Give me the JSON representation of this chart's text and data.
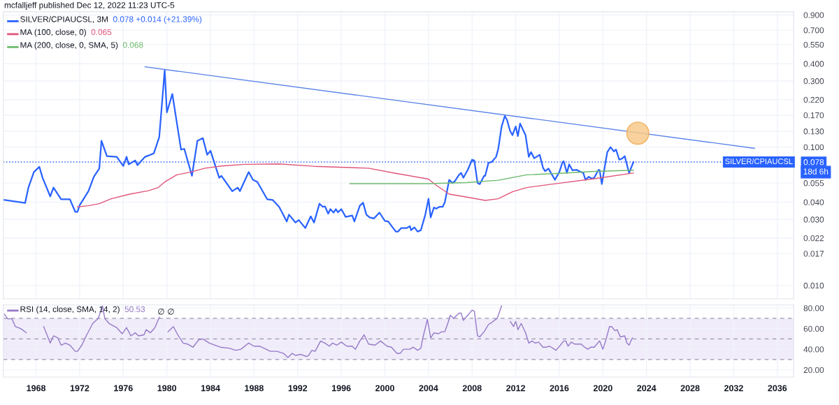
{
  "chart_data": [
    {
      "type": "line",
      "title": "mcfalljeff published Dec 12, 2022 11:23 UTC-5",
      "log": "y",
      "grid": true,
      "legend": "top left",
      "tick_labels": "y",
      "xlim": [
        1965.0,
        2037.5
      ],
      "xticks": [
        1968,
        1972,
        1976,
        1980,
        1984,
        1988,
        1992,
        1996,
        2000,
        2004,
        2008,
        2012,
        2016,
        2020,
        2024,
        2028,
        2032,
        2036
      ],
      "ylim": [
        0.008,
        0.95
      ],
      "yticks": [
        {
          "value": 0.01,
          "label": "0.010"
        },
        {
          "value": 0.017,
          "label": "0.017"
        },
        {
          "value": 0.022,
          "label": "0.022"
        },
        {
          "value": 0.03,
          "label": "0.030"
        },
        {
          "value": 0.04,
          "label": "0.040"
        },
        {
          "value": 0.055,
          "label": "0.055"
        },
        {
          "value": 0.078,
          "label": "0.078"
        },
        {
          "value": 0.1,
          "label": "0.100"
        },
        {
          "value": 0.13,
          "label": "0.130"
        },
        {
          "value": 0.17,
          "label": "0.170"
        },
        {
          "value": 0.22,
          "label": "0.220"
        },
        {
          "value": 0.3,
          "label": "0.300"
        },
        {
          "value": 0.4,
          "label": "0.400"
        },
        {
          "value": 0.55,
          "label": "0.550"
        },
        {
          "value": 0.7,
          "label": "0.700"
        },
        {
          "value": 0.9,
          "label": "0.900"
        }
      ],
      "ref_lines": [
        {
          "axis": "y",
          "value": 0.078,
          "label": "SILVER/CPIAUCSL",
          "color": "#2962ff",
          "line_style": "dotted"
        }
      ],
      "annotations": [
        "0.078 +0.014 (+21.39%)",
        "0.065",
        "0.068",
        "18d 6h"
      ],
      "series": [
        {
          "name": "SILVER/CPIAUCSL, 3M",
          "color": "#2962ff",
          "x": [
            1965.1,
            1967.0,
            1967.3,
            1967.8,
            1968.3,
            1968.6,
            1969.3,
            1969.6,
            1970.3,
            1971.1,
            1971.6,
            1971.8,
            1972.0,
            1972.8,
            1973.3,
            1973.8,
            1974.0,
            1974.5,
            1975.4,
            1976.0,
            1976.3,
            1976.5,
            1977.1,
            1977.3,
            1978.0,
            1978.8,
            1979.3,
            1979.8,
            1980.0,
            1980.5,
            1981.3,
            1981.6,
            1982.3,
            1982.8,
            1983.3,
            1983.7,
            1984.0,
            1984.8,
            1985.0,
            1986.0,
            1986.5,
            1986.7,
            1987.5,
            1987.9,
            1988.3,
            1989.2,
            1989.7,
            1990.3,
            1991.0,
            1991.2,
            1991.8,
            1992.1,
            1992.7,
            1993.2,
            1993.5,
            1994.0,
            1994.3,
            1994.5,
            1994.8,
            1995.0,
            1995.3,
            1995.5,
            1995.7,
            1996.0,
            1996.4,
            1997.0,
            1997.2,
            1997.7,
            1998.0,
            1998.3,
            1998.6,
            1999.0,
            1999.5,
            2000.0,
            2000.3,
            2001.0,
            2001.2,
            2001.5,
            2002.0,
            2002.3,
            2002.4,
            2002.7,
            2003.0,
            2003.3,
            2003.7,
            2004.0,
            2004.2,
            2004.5,
            2004.7,
            2005.0,
            2005.3,
            2005.5,
            2005.9,
            2006.2,
            2006.4,
            2006.8,
            2007.0,
            2007.2,
            2007.6,
            2008.0,
            2008.2,
            2008.5,
            2008.7,
            2009.1,
            2009.2,
            2009.5,
            2009.8,
            2010.2,
            2010.4,
            2010.7,
            2011.0,
            2011.2,
            2011.5,
            2011.7,
            2012.0,
            2012.2,
            2012.4,
            2012.9,
            2013.2,
            2013.4,
            2013.7,
            2014.2,
            2014.5,
            2014.7,
            2015.0,
            2015.6,
            2016.0,
            2016.3,
            2016.4,
            2016.7,
            2016.9,
            2017.2,
            2017.6,
            2017.8,
            2018.2,
            2018.4,
            2018.7,
            2019.0,
            2019.2,
            2019.6,
            2019.7,
            2019.9,
            2020.4,
            2020.7,
            2021.0,
            2021.2,
            2021.5,
            2021.8,
            2022.0,
            2022.4,
            2022.8
          ],
          "values": [
            0.0415,
            0.0395,
            0.051,
            0.066,
            0.072,
            0.06,
            0.044,
            0.051,
            0.042,
            0.042,
            0.034,
            0.034,
            0.038,
            0.048,
            0.061,
            0.07,
            0.111,
            0.086,
            0.085,
            0.073,
            0.085,
            0.075,
            0.08,
            0.074,
            0.085,
            0.09,
            0.118,
            0.36,
            0.178,
            0.242,
            0.096,
            0.097,
            0.062,
            0.111,
            0.116,
            0.088,
            0.094,
            0.06,
            0.062,
            0.048,
            0.051,
            0.048,
            0.066,
            0.058,
            0.056,
            0.042,
            0.0415,
            0.037,
            0.029,
            0.0325,
            0.0285,
            0.0297,
            0.026,
            0.0316,
            0.0285,
            0.039,
            0.037,
            0.0373,
            0.033,
            0.0356,
            0.0336,
            0.0356,
            0.0338,
            0.0356,
            0.0313,
            0.032,
            0.029,
            0.0377,
            0.0396,
            0.0325,
            0.031,
            0.0305,
            0.0336,
            0.0293,
            0.029,
            0.0245,
            0.0245,
            0.026,
            0.026,
            0.0268,
            0.0251,
            0.0263,
            0.0245,
            0.0251,
            0.0323,
            0.0423,
            0.031,
            0.0366,
            0.0359,
            0.037,
            0.037,
            0.04,
            0.058,
            0.055,
            0.0565,
            0.063,
            0.065,
            0.06,
            0.0685,
            0.081,
            0.08,
            0.055,
            0.054,
            0.062,
            0.062,
            0.077,
            0.078,
            0.085,
            0.097,
            0.14,
            0.168,
            0.157,
            0.13,
            0.122,
            0.141,
            0.12,
            0.148,
            0.122,
            0.085,
            0.092,
            0.083,
            0.088,
            0.071,
            0.067,
            0.07,
            0.058,
            0.066,
            0.078,
            0.079,
            0.065,
            0.075,
            0.068,
            0.0685,
            0.067,
            0.065,
            0.058,
            0.061,
            0.059,
            0.06,
            0.0685,
            0.068,
            0.054,
            0.092,
            0.1,
            0.093,
            0.096,
            0.081,
            0.083,
            0.086,
            0.065,
            0.078
          ]
        },
        {
          "name": "MA (100, close, 0)",
          "color": "#e0557a",
          "x": [
            1971.8,
            1972.8,
            1973.8,
            1974.9,
            1976.6,
            1978.3,
            1979.2,
            1979.8,
            1980.9,
            1982.2,
            1983.5,
            1985.0,
            1987.1,
            1990.3,
            1993.5,
            1998.5,
            2001.0,
            2004.0,
            2004.7,
            2005.9,
            2007.5,
            2009.2,
            2010.4,
            2011.7,
            2013.0,
            2016.0,
            2019.2,
            2022.8
          ],
          "values": [
            0.037,
            0.0377,
            0.039,
            0.0423,
            0.0457,
            0.0484,
            0.051,
            0.0559,
            0.063,
            0.066,
            0.0704,
            0.073,
            0.075,
            0.0755,
            0.0726,
            0.0704,
            0.0646,
            0.0587,
            0.053,
            0.0457,
            0.0435,
            0.0412,
            0.0423,
            0.0475,
            0.051,
            0.0548,
            0.059,
            0.065
          ]
        },
        {
          "name": "MA (200, close, 0, SMA, 5)",
          "color": "#6dbb6d",
          "x": [
            1996.8,
            2004.0,
            2007.5,
            2010.4,
            2013.0,
            2016.0,
            2019.2,
            2022.8
          ],
          "values": [
            0.0544,
            0.0544,
            0.0554,
            0.0576,
            0.063,
            0.0646,
            0.0667,
            0.068
          ]
        },
        {
          "color": "#5b84e8",
          "x": [
            1978.0,
            2033.9
          ],
          "values": [
            0.38,
            0.098
          ]
        },
        {
          "type": "scatter",
          "color": "#f7c98b",
          "x": [
            2023.2
          ],
          "values": [
            0.126
          ]
        }
      ]
    },
    {
      "type": "line",
      "grid": true,
      "legend": "top left",
      "xlim": [
        1965.0,
        2037.5
      ],
      "xticks": [
        1968,
        1972,
        1976,
        1980,
        1984,
        1988,
        1992,
        1996,
        2000,
        2004,
        2008,
        2012,
        2016,
        2020,
        2024,
        2028,
        2032,
        2036
      ],
      "ylim": [
        13,
        83
      ],
      "yticks": [
        {
          "value": 20,
          "label": "20.00"
        },
        {
          "value": 40,
          "label": "40.00"
        },
        {
          "value": 60,
          "label": "60.00"
        },
        {
          "value": 80,
          "label": "80.00"
        }
      ],
      "ref_lines": [
        {
          "axis": "y",
          "value": 70,
          "color": "#9b94ad",
          "line_style": "dashed"
        },
        {
          "axis": "y",
          "value": 50,
          "color": "#9b94ad",
          "line_style": "dashed"
        },
        {
          "axis": "y",
          "value": 30,
          "color": "#9b94ad",
          "line_style": "dashed"
        }
      ],
      "bands": [
        {
          "axis": "y",
          "from": 30,
          "to": 70,
          "color": "#f0ecfa"
        }
      ],
      "annotations": [
        "50.53",
        "∅ ∅"
      ],
      "series": [
        {
          "name": "RSI (14, close, SMA, 14, 2)",
          "color": "#9579c7",
          "x": [
            1965.1,
            1965.4,
            1965.8,
            1966.1,
            1966.6,
            1967.1,
            1967.3,
            1968.4,
            1968.7,
            1969.3,
            1969.6,
            1970.0,
            1970.3,
            1970.7,
            1971.1,
            1971.6,
            1971.8,
            1972.2,
            1972.6,
            1973.2,
            1973.7,
            1974.1,
            1974.3,
            1974.7,
            1975.4,
            1975.9,
            1976.3,
            1976.7,
            1977.1,
            1977.4,
            1977.9,
            1978.1,
            1978.5,
            1978.9,
            1979.3,
            1979.6,
            1979.9,
            1980.1,
            1980.6,
            1981.0,
            1981.5,
            1981.9,
            1982.4,
            1982.9,
            1983.3,
            1983.9,
            1984.9,
            1985.7,
            1986.3,
            1986.8,
            1987.5,
            1988.0,
            1988.5,
            1989.5,
            1990.1,
            1990.7,
            1991.1,
            1991.5,
            1991.8,
            1992.3,
            1992.8,
            1993.0,
            1993.3,
            1993.6,
            1994.1,
            1994.5,
            1994.9,
            1995.2,
            1995.6,
            1996.0,
            1996.5,
            1997.0,
            1997.3,
            1997.7,
            1998.1,
            1998.5,
            1999.1,
            1999.6,
            2000.2,
            2000.6,
            2001.1,
            2001.4,
            2001.7,
            2002.3,
            2002.6,
            2003.0,
            2003.3,
            2003.5,
            2003.9,
            2004.2,
            2004.5,
            2004.9,
            2005.2,
            2005.5,
            2005.8,
            2006.0,
            2006.3,
            2006.8,
            2007.0,
            2007.2,
            2007.6,
            2008.0,
            2008.2,
            2008.5,
            2008.7,
            2009.1,
            2009.5,
            2009.8,
            2010.3,
            2010.7,
            2010.9,
            2011.2,
            2011.5,
            2011.8,
            2012.0,
            2012.2,
            2012.5,
            2012.9,
            2013.2,
            2013.5,
            2013.8,
            2014.1,
            2014.5,
            2014.8,
            2015.1,
            2015.7,
            2016.1,
            2016.4,
            2016.6,
            2016.8,
            2017.1,
            2017.4,
            2018.0,
            2018.2,
            2018.6,
            2018.9,
            2019.2,
            2019.6,
            2019.7,
            2020.0,
            2020.3,
            2020.6,
            2020.8,
            2021.1,
            2021.3,
            2021.6,
            2022.0,
            2022.2,
            2022.4,
            2022.7
          ],
          "values": [
            74,
            69.5,
            69.5,
            62,
            60,
            56,
            null,
            null,
            62,
            46,
            53,
            51,
            44,
            46,
            44,
            38,
            38,
            44,
            53,
            65,
            70,
            82,
            70,
            65,
            61,
            55,
            61,
            53,
            56,
            53,
            54,
            59,
            56,
            61,
            71,
            null,
            null,
            57,
            62,
            54,
            46,
            45,
            42,
            49,
            50,
            46,
            42,
            41,
            39,
            40,
            46,
            43,
            43,
            38,
            38,
            36,
            32,
            36,
            34,
            35,
            33,
            34,
            39,
            38,
            48,
            46,
            43,
            46,
            44,
            47,
            43,
            43,
            40,
            48,
            54,
            45,
            44,
            48,
            43,
            42,
            36,
            36,
            40,
            40,
            42,
            39,
            41,
            52,
            69,
            51,
            56,
            55,
            57,
            57,
            66,
            73,
            70,
            75,
            75,
            68,
            73,
            78,
            77,
            53,
            52,
            57,
            64,
            66,
            70,
            82,
            null,
            null,
            67,
            62,
            67,
            59,
            65,
            56,
            46,
            48,
            46,
            47,
            42,
            42,
            43,
            39,
            44,
            48,
            48,
            43,
            47,
            45,
            45,
            43,
            40,
            42,
            42,
            47,
            48,
            40,
            50,
            62,
            62,
            58,
            59,
            52,
            53,
            46,
            44,
            51
          ]
        }
      ]
    }
  ]
}
